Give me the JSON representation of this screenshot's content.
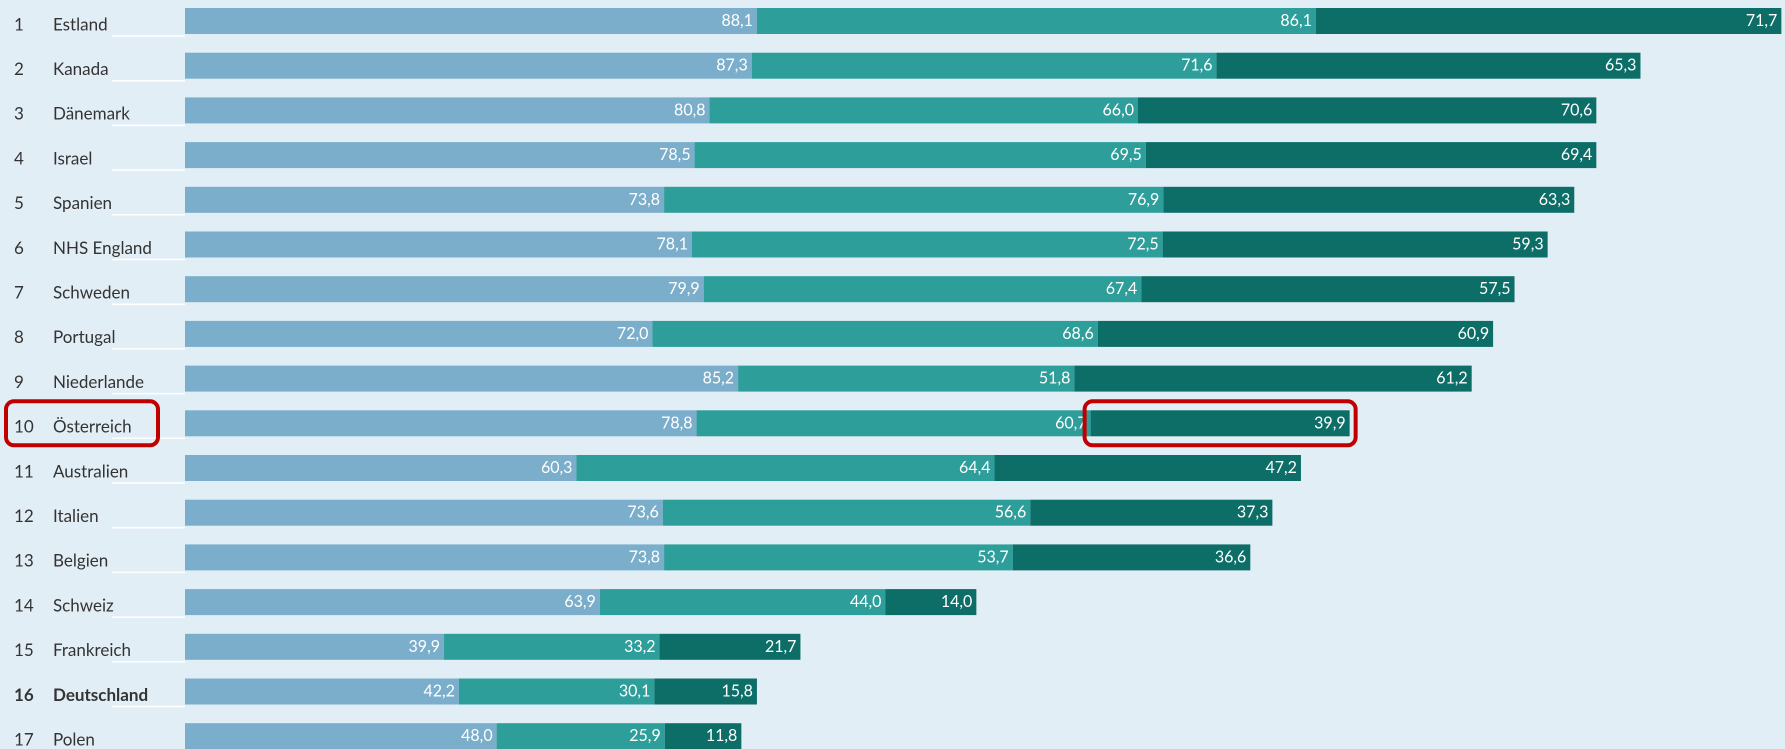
{
  "chart_data": {
    "type": "stacked-bar-horizontal",
    "ranks": [
      "1",
      "2",
      "3",
      "4",
      "5",
      "6",
      "7",
      "8",
      "9",
      "10",
      "11",
      "12",
      "13",
      "14",
      "15",
      "16",
      "17"
    ],
    "categories": [
      "Estland",
      "Kanada",
      "Dänemark",
      "Israel",
      "Spanien",
      "NHS England",
      "Schweden",
      "Portugal",
      "Niederlande",
      "Österreich",
      "Australien",
      "Italien",
      "Belgien",
      "Schweiz",
      "Frankreich",
      "Deutschland",
      "Polen"
    ],
    "category_colors": [
      "#333333",
      "#333333",
      "#333333",
      "#333333",
      "#333333",
      "#333333",
      "#333333",
      "#333333",
      "#333333",
      "#333333",
      "#333333",
      "#333333",
      "#333333",
      "#333333",
      "#333333",
      "#c0145a",
      "#333333"
    ],
    "xlim": [
      0,
      246
    ],
    "series": [
      {
        "color": "#7aaecb",
        "values": [
          88.1,
          87.3,
          80.8,
          78.5,
          73.8,
          78.1,
          79.9,
          72.0,
          85.2,
          78.8,
          60.3,
          73.6,
          73.8,
          63.9,
          39.9,
          42.2,
          48.0
        ],
        "value_labels": [
          "88,1",
          "87,3",
          "80,8",
          "78,5",
          "73,8",
          "78,1",
          "79,9",
          "72,0",
          "85,2",
          "78,8",
          "60,3",
          "73,6",
          "73,8",
          "63,9",
          "39,9",
          "42,2",
          "48,0"
        ]
      },
      {
        "color": "#2e9e9a",
        "values": [
          86.1,
          71.6,
          66.0,
          69.5,
          76.9,
          72.5,
          67.4,
          68.6,
          51.8,
          60.7,
          64.4,
          56.6,
          53.7,
          44.0,
          33.2,
          30.1,
          25.9
        ],
        "value_labels": [
          "86,1",
          "71,6",
          "66,0",
          "69,5",
          "76,9",
          "72,5",
          "67,4",
          "68,6",
          "51,8",
          "60,7",
          "64,4",
          "56,6",
          "53,7",
          "44,0",
          "33,2",
          "30,1",
          "25,9"
        ]
      },
      {
        "color": "#0d6e68",
        "values": [
          71.7,
          65.3,
          70.6,
          69.4,
          63.3,
          59.3,
          57.5,
          60.9,
          61.2,
          39.9,
          47.2,
          37.3,
          36.6,
          14.0,
          21.7,
          15.8,
          11.8
        ],
        "value_labels": [
          "71,7",
          "65,3",
          "70,6",
          "69,4",
          "63,3",
          "59,3",
          "57,5",
          "60,9",
          "61,2",
          "39,9",
          "47,2",
          "37,3",
          "36,6",
          "14,0",
          "21,7",
          "15,8",
          "11,8"
        ]
      }
    ]
  }
}
